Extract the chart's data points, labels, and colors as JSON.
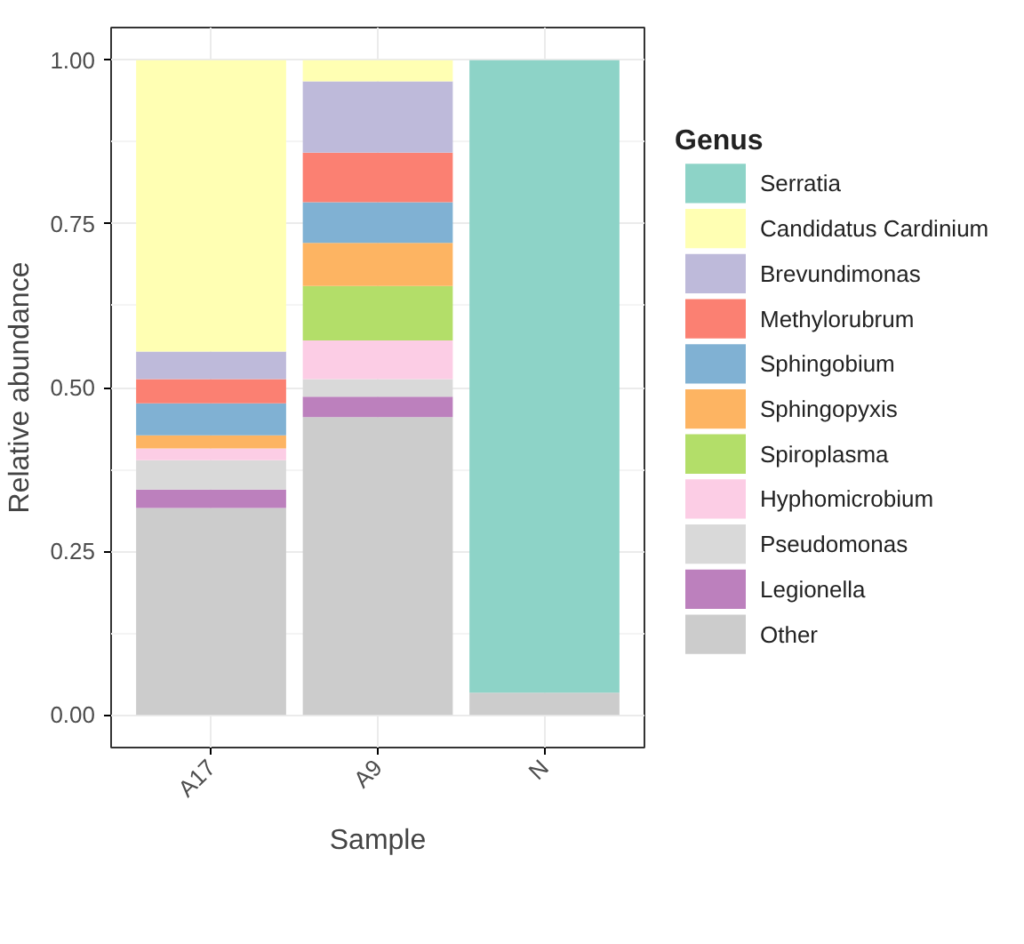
{
  "chart_data": {
    "type": "bar",
    "stacked": true,
    "xlabel": "Sample",
    "ylabel": "Relative abundance",
    "legend_title": "Genus",
    "legend": "right",
    "grid": true,
    "categories": [
      "A17",
      "A9",
      "N"
    ],
    "ylim": [
      -0.05,
      1.05
    ],
    "yticks": [
      {
        "value": 0,
        "label": "0.00"
      },
      {
        "value": 0.25,
        "label": "0.25"
      },
      {
        "value": 0.5,
        "label": "0.50"
      },
      {
        "value": 0.75,
        "label": "0.75"
      },
      {
        "value": 1,
        "label": "1.00"
      }
    ],
    "series": [
      {
        "name": "Other",
        "color": "#cccccc",
        "values": [
          0.316,
          0.455,
          0.034
        ]
      },
      {
        "name": "Legionella",
        "color": "#bc80bd",
        "values": [
          0.028,
          0.031,
          null
        ]
      },
      {
        "name": "Pseudomonas",
        "color": "#d9d9d9",
        "values": [
          0.045,
          0.027,
          null
        ]
      },
      {
        "name": "Hyphomicrobium",
        "color": "#fccde5",
        "values": [
          0.018,
          0.059,
          null
        ]
      },
      {
        "name": "Spiroplasma",
        "color": "#b3de69",
        "values": [
          null,
          0.083,
          null
        ]
      },
      {
        "name": "Sphingopyxis",
        "color": "#fdb462",
        "values": [
          0.02,
          0.066,
          null
        ]
      },
      {
        "name": "Sphingobium",
        "color": "#80b1d3",
        "values": [
          0.049,
          0.062,
          null
        ]
      },
      {
        "name": "Methylorubrum",
        "color": "#fb8072",
        "values": [
          0.037,
          0.076,
          null
        ]
      },
      {
        "name": "Brevundimonas",
        "color": "#bebada",
        "values": [
          0.042,
          0.109,
          null
        ]
      },
      {
        "name": "Candidatus Cardinium",
        "color": "#ffffb3",
        "values": [
          0.445,
          0.032,
          null
        ]
      },
      {
        "name": "Serratia",
        "color": "#8dd3c7",
        "values": [
          null,
          null,
          0.966
        ]
      }
    ]
  }
}
